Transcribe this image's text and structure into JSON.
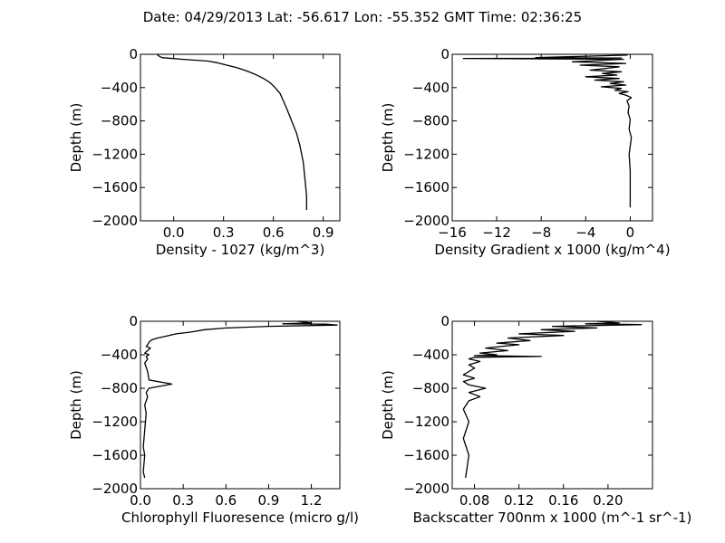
{
  "figure": {
    "title": "Date: 04/29/2013  Lat:  -56.617 Lon:  -55.352  GMT Time: 02:36:25"
  },
  "chart_data": [
    {
      "type": "line",
      "id": "density",
      "xlabel": "Density - 1027 (kg/m^3)",
      "ylabel": "Depth (m)",
      "xlim": [
        -0.2,
        1.0
      ],
      "ylim": [
        -2000,
        0
      ],
      "xticks": [
        0.0,
        0.3,
        0.6,
        0.9
      ],
      "xtick_labels": [
        "0.0",
        "0.3",
        "0.6",
        "0.9"
      ],
      "yticks": [
        0,
        -400,
        -800,
        -1200,
        -1600,
        -2000
      ],
      "ytick_labels": [
        "0",
        "−400",
        "−800",
        "−1200",
        "−1600",
        "−2000"
      ],
      "series": [
        {
          "x": [
            -0.1,
            -0.09,
            -0.07,
            0.05,
            0.2,
            0.26,
            0.32,
            0.38,
            0.44,
            0.49,
            0.54,
            0.58,
            0.61,
            0.64,
            0.66,
            0.68,
            0.7,
            0.72,
            0.74,
            0.76,
            0.78,
            0.79,
            0.8,
            0.8
          ],
          "y": [
            0,
            -20,
            -40,
            -60,
            -80,
            -100,
            -130,
            -160,
            -200,
            -240,
            -290,
            -340,
            -400,
            -470,
            -560,
            -650,
            -750,
            -850,
            -950,
            -1100,
            -1300,
            -1500,
            -1700,
            -1870
          ]
        }
      ]
    },
    {
      "type": "line",
      "id": "density-gradient",
      "xlabel": "Density Gradient x 1000 (kg/m^4)",
      "ylabel": "Depth (m)",
      "xlim": [
        -16,
        2
      ],
      "ylim": [
        -2000,
        0
      ],
      "xticks": [
        -16,
        -12,
        -8,
        -4,
        0
      ],
      "xtick_labels": [
        "−16",
        "−12",
        "−8",
        "−4",
        "0"
      ],
      "yticks": [
        0,
        -400,
        -800,
        -1200,
        -1600,
        -2000
      ],
      "ytick_labels": [
        "0",
        "−400",
        "−800",
        "−1200",
        "−1600",
        "−2000"
      ],
      "series": [
        {
          "x": [
            -0.2,
            -0.3,
            -8.5,
            -0.8,
            -15.0,
            -0.6,
            -5.2,
            -0.4,
            -4.5,
            -1.0,
            -2.2,
            -3.6,
            -0.8,
            -2.5,
            -1.2,
            -4.0,
            -1.0,
            -3.2,
            -0.6,
            -1.8,
            -0.4,
            -2.6,
            -0.8,
            -1.4,
            -0.2,
            -1.0,
            -0.4,
            0.1,
            -0.3,
            -0.1,
            -0.2,
            0.0,
            -0.1,
            0.1,
            -0.1,
            0.0,
            0.0,
            0.0
          ],
          "y": [
            0,
            -10,
            -40,
            -45,
            -50,
            -60,
            -90,
            -110,
            -130,
            -150,
            -170,
            -190,
            -210,
            -230,
            -250,
            -270,
            -290,
            -310,
            -330,
            -350,
            -370,
            -390,
            -410,
            -430,
            -450,
            -470,
            -490,
            -520,
            -560,
            -620,
            -700,
            -780,
            -900,
            -1000,
            -1200,
            -1400,
            -1600,
            -1840
          ]
        }
      ]
    },
    {
      "type": "line",
      "id": "chlorophyll",
      "xlabel": "Chlorophyll Fluoresence (micro g/l)",
      "ylabel": "Depth (m)",
      "xlim": [
        0.0,
        1.4
      ],
      "ylim": [
        -2000,
        0
      ],
      "xticks": [
        0.0,
        0.3,
        0.6,
        0.9,
        1.2
      ],
      "xtick_labels": [
        "0.0",
        "0.3",
        "0.6",
        "0.9",
        "1.2"
      ],
      "yticks": [
        0,
        -400,
        -800,
        -1200,
        -1600,
        -2000
      ],
      "ytick_labels": [
        "0",
        "−400",
        "−800",
        "−1200",
        "−1600",
        "−2000"
      ],
      "series": [
        {
          "x": [
            1.1,
            1.2,
            1.0,
            1.3,
            1.38,
            0.9,
            0.6,
            0.45,
            0.35,
            0.25,
            0.2,
            0.12,
            0.08,
            0.06,
            0.05,
            0.04,
            0.07,
            0.05,
            0.03,
            0.06,
            0.04,
            0.05,
            0.03,
            0.04,
            0.05,
            0.06,
            0.22,
            0.06,
            0.04,
            0.05,
            0.03,
            0.04,
            0.03,
            0.02,
            0.03,
            0.02,
            0.03
          ],
          "y": [
            0,
            -20,
            -30,
            -35,
            -45,
            -60,
            -80,
            -100,
            -130,
            -150,
            -170,
            -200,
            -220,
            -250,
            -280,
            -300,
            -320,
            -350,
            -380,
            -400,
            -420,
            -450,
            -500,
            -550,
            -600,
            -700,
            -750,
            -800,
            -850,
            -900,
            -1000,
            -1100,
            -1300,
            -1500,
            -1600,
            -1800,
            -1870
          ]
        }
      ]
    },
    {
      "type": "line",
      "id": "backscatter",
      "xlabel": "Backscatter 700nm x 1000 (m^-1 sr^-1)",
      "ylabel": "Depth (m)",
      "xlim": [
        0.06,
        0.24
      ],
      "ylim": [
        -2000,
        0
      ],
      "xticks": [
        0.08,
        0.12,
        0.16,
        0.2
      ],
      "xtick_labels": [
        "0.08",
        "0.12",
        "0.16",
        "0.20"
      ],
      "yticks": [
        0,
        -400,
        -800,
        -1200,
        -1600,
        -2000
      ],
      "ytick_labels": [
        "0",
        "−400",
        "−800",
        "−1200",
        "−1600",
        "−2000"
      ],
      "series": [
        {
          "x": [
            0.19,
            0.21,
            0.18,
            0.23,
            0.15,
            0.19,
            0.14,
            0.17,
            0.12,
            0.16,
            0.11,
            0.13,
            0.1,
            0.12,
            0.09,
            0.11,
            0.085,
            0.1,
            0.08,
            0.14,
            0.08,
            0.075,
            0.085,
            0.075,
            0.08,
            0.075,
            0.07,
            0.08,
            0.07,
            0.075,
            0.09,
            0.075,
            0.085,
            0.075,
            0.07,
            0.075,
            0.07,
            0.075,
            0.072
          ],
          "y": [
            0,
            -20,
            -30,
            -40,
            -60,
            -80,
            -100,
            -120,
            -150,
            -170,
            -200,
            -230,
            -260,
            -280,
            -320,
            -350,
            -380,
            -400,
            -410,
            -420,
            -430,
            -450,
            -480,
            -520,
            -560,
            -600,
            -640,
            -680,
            -720,
            -760,
            -800,
            -850,
            -900,
            -950,
            -1050,
            -1200,
            -1400,
            -1600,
            -1870
          ]
        }
      ]
    }
  ]
}
